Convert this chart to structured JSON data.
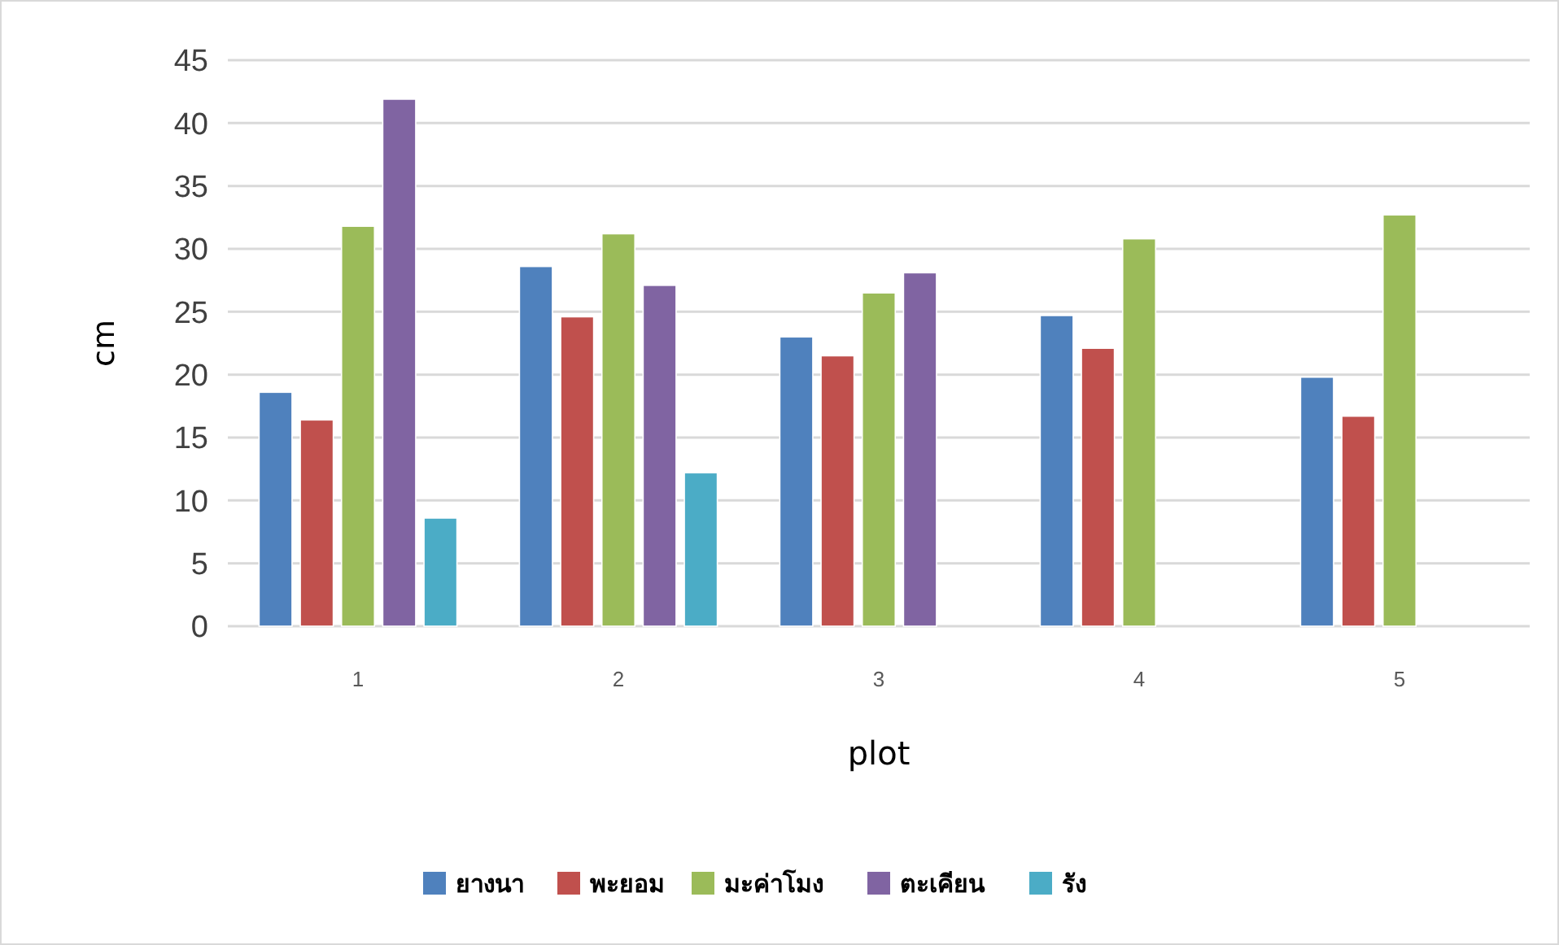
{
  "chart_data": {
    "type": "bar",
    "xlabel": "plot",
    "ylabel": "cm",
    "categories": [
      "1",
      "2",
      "3",
      "4",
      "5"
    ],
    "series": [
      {
        "name": "ยางนา",
        "color": "#4f81bd",
        "values": [
          18.6,
          28.6,
          23.0,
          24.7,
          19.8
        ]
      },
      {
        "name": "พะยอม",
        "color": "#c0504d",
        "values": [
          16.4,
          24.6,
          21.5,
          22.1,
          16.7
        ]
      },
      {
        "name": "มะค่าโมง",
        "color": "#9bbb59",
        "values": [
          31.8,
          31.2,
          26.5,
          30.8,
          32.7
        ]
      },
      {
        "name": "ตะเคียน",
        "color": "#8064a2",
        "values": [
          41.9,
          27.1,
          28.1,
          null,
          null
        ]
      },
      {
        "name": "รัง",
        "color": "#4bacc6",
        "values": [
          8.6,
          12.2,
          null,
          null,
          null
        ]
      }
    ],
    "ylim": [
      0,
      45
    ],
    "yticks": [
      0,
      5,
      10,
      15,
      20,
      25,
      30,
      35,
      40,
      45
    ],
    "grid": "y",
    "legend": "bottom"
  }
}
